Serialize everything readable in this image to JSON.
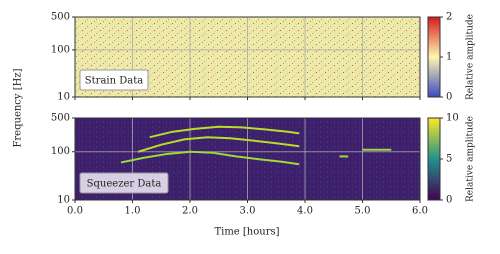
{
  "chart_data": [
    {
      "type": "heatmap",
      "annotation": "Strain Data",
      "ylabel": "Frequency [Hz]",
      "log_y": true,
      "grid": true,
      "xlim": [
        0,
        6
      ],
      "xticks": [
        0,
        1,
        2,
        3,
        4,
        5,
        6
      ],
      "ylim": [
        10,
        500
      ],
      "yticks": [
        10,
        100,
        500
      ],
      "colorbar": {
        "label": "Relative amplitude",
        "lim": [
          0,
          2
        ],
        "ticks": [
          0,
          1,
          2
        ],
        "colors": [
          "#3b4cc0",
          "#fdf6b0",
          "#d7191c"
        ]
      },
      "background": "#ede9a8",
      "series": []
    },
    {
      "type": "heatmap",
      "annotation": "Squeezer Data",
      "xlabel": "Time [hours]",
      "log_y": true,
      "grid": true,
      "xlim": [
        0,
        6
      ],
      "xticks": [
        {
          "value": 0,
          "label": "0.0"
        },
        {
          "value": 1,
          "label": "1.0"
        },
        {
          "value": 2,
          "label": "2.0"
        },
        {
          "value": 3,
          "label": "3.0"
        },
        {
          "value": 4,
          "label": "4.0"
        },
        {
          "value": 5,
          "label": "5.0"
        },
        {
          "value": 6,
          "label": "6.0"
        }
      ],
      "ylim": [
        10,
        500
      ],
      "yticks": [
        10,
        100,
        500
      ],
      "colorbar": {
        "label": "Relative amplitude",
        "lim": [
          0,
          10
        ],
        "ticks": [
          0,
          5,
          10
        ],
        "colors": [
          "#440154",
          "#21918c",
          "#fde725"
        ]
      },
      "background": "#3d1f6b",
      "series": [
        {
          "color": "#9fd93a",
          "x": [
            0.8,
            1.2,
            1.6,
            2.0,
            2.4,
            2.8,
            3.2,
            3.6,
            3.9
          ],
          "values": [
            60,
            75,
            90,
            100,
            95,
            80,
            70,
            62,
            55
          ]
        },
        {
          "color": "#b5de2b",
          "x": [
            1.1,
            1.5,
            1.9,
            2.3,
            2.7,
            3.1,
            3.5,
            3.9
          ],
          "values": [
            100,
            140,
            180,
            200,
            190,
            170,
            150,
            130
          ]
        },
        {
          "color": "#b5de2b",
          "x": [
            1.3,
            1.7,
            2.1,
            2.5,
            2.9,
            3.3,
            3.7,
            3.9
          ],
          "values": [
            200,
            260,
            300,
            330,
            320,
            290,
            260,
            240
          ]
        },
        {
          "color": "#9fd93a",
          "x": [
            4.6,
            4.75
          ],
          "values": [
            80,
            80
          ]
        },
        {
          "color": "#9fd93a",
          "x": [
            5.0,
            5.5
          ],
          "values": [
            110,
            110
          ]
        }
      ]
    }
  ]
}
